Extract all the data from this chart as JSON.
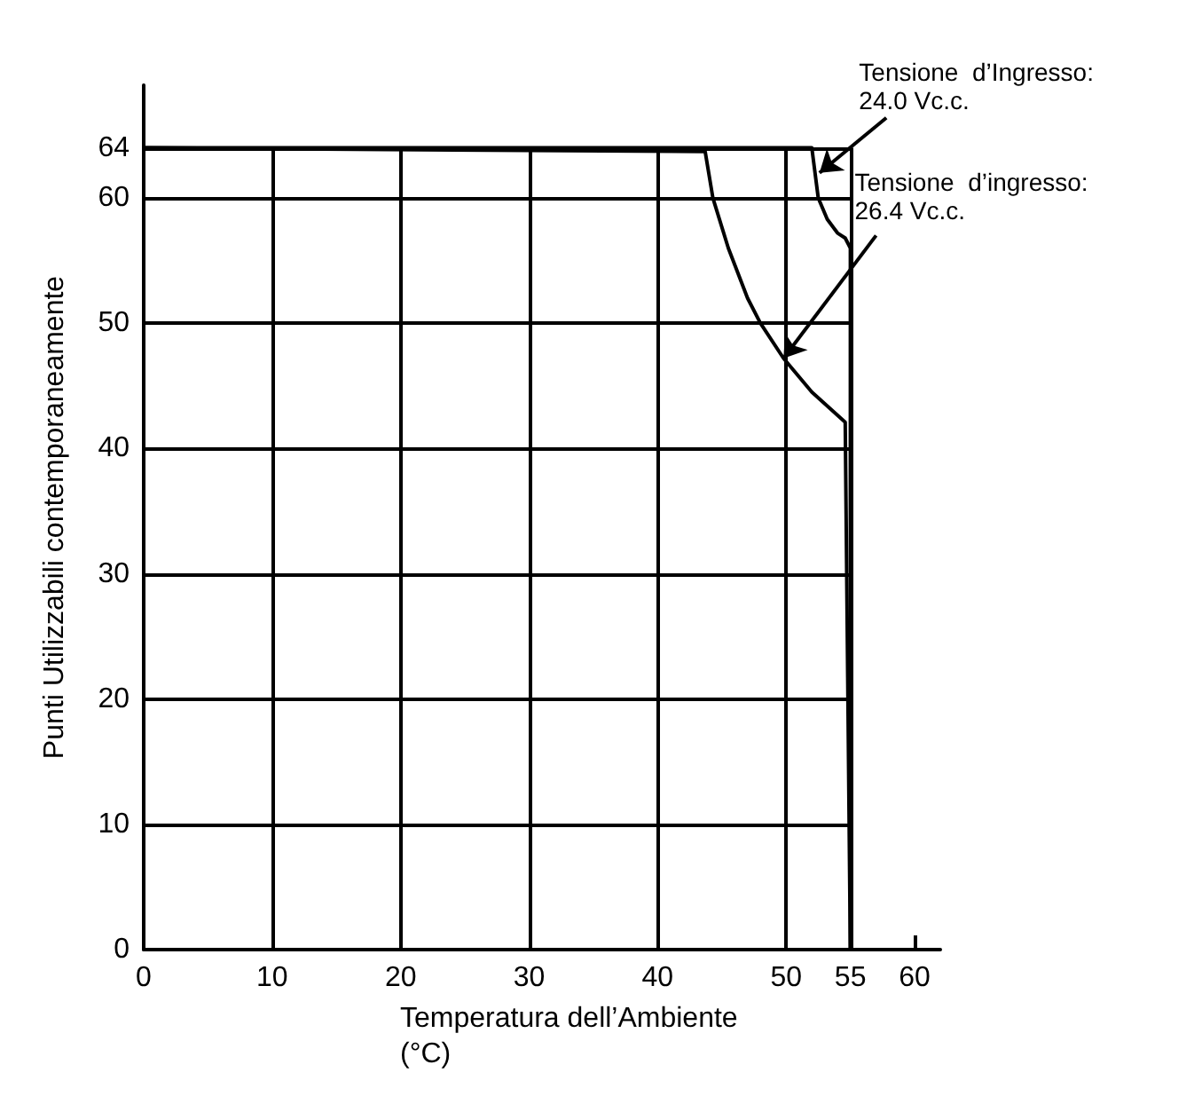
{
  "chart_data": {
    "type": "line",
    "xlabel": "Temperatura dell’Ambiente\n(°C)",
    "ylabel": "Punti Utilizzabili contemporaneamente",
    "xlim": [
      0,
      62
    ],
    "ylim": [
      0,
      69
    ],
    "xticks": [
      0,
      10,
      20,
      30,
      40,
      50,
      55,
      60
    ],
    "yticks": [
      0,
      10,
      20,
      30,
      40,
      50,
      60,
      64
    ],
    "grid": true,
    "marker": "none",
    "line_style": "solid",
    "series": [
      {
        "color": "#000000",
        "x": [
          0,
          52.0,
          52.5,
          53.2,
          54.0,
          54.6,
          55,
          55
        ],
        "values": [
          64,
          64,
          60,
          58.3,
          57.2,
          56.8,
          56,
          0
        ]
      },
      {
        "color": "#000000",
        "x": [
          0,
          43.7,
          44.3,
          45.5,
          47,
          48,
          49.8,
          52,
          54.6,
          55
        ],
        "values": [
          64,
          63.7,
          60,
          56,
          52,
          50,
          47.2,
          44.5,
          42.1,
          0
        ]
      }
    ],
    "annotations": [
      {
        "text": "Tensione  d’Ingresso:\n24.0 Vc.c.",
        "x": 52.6,
        "y": 62
      },
      {
        "text": "Tensione  d’ingresso:\n26.4 Vc.c.",
        "x": 49.8,
        "y": 47.2
      }
    ]
  }
}
